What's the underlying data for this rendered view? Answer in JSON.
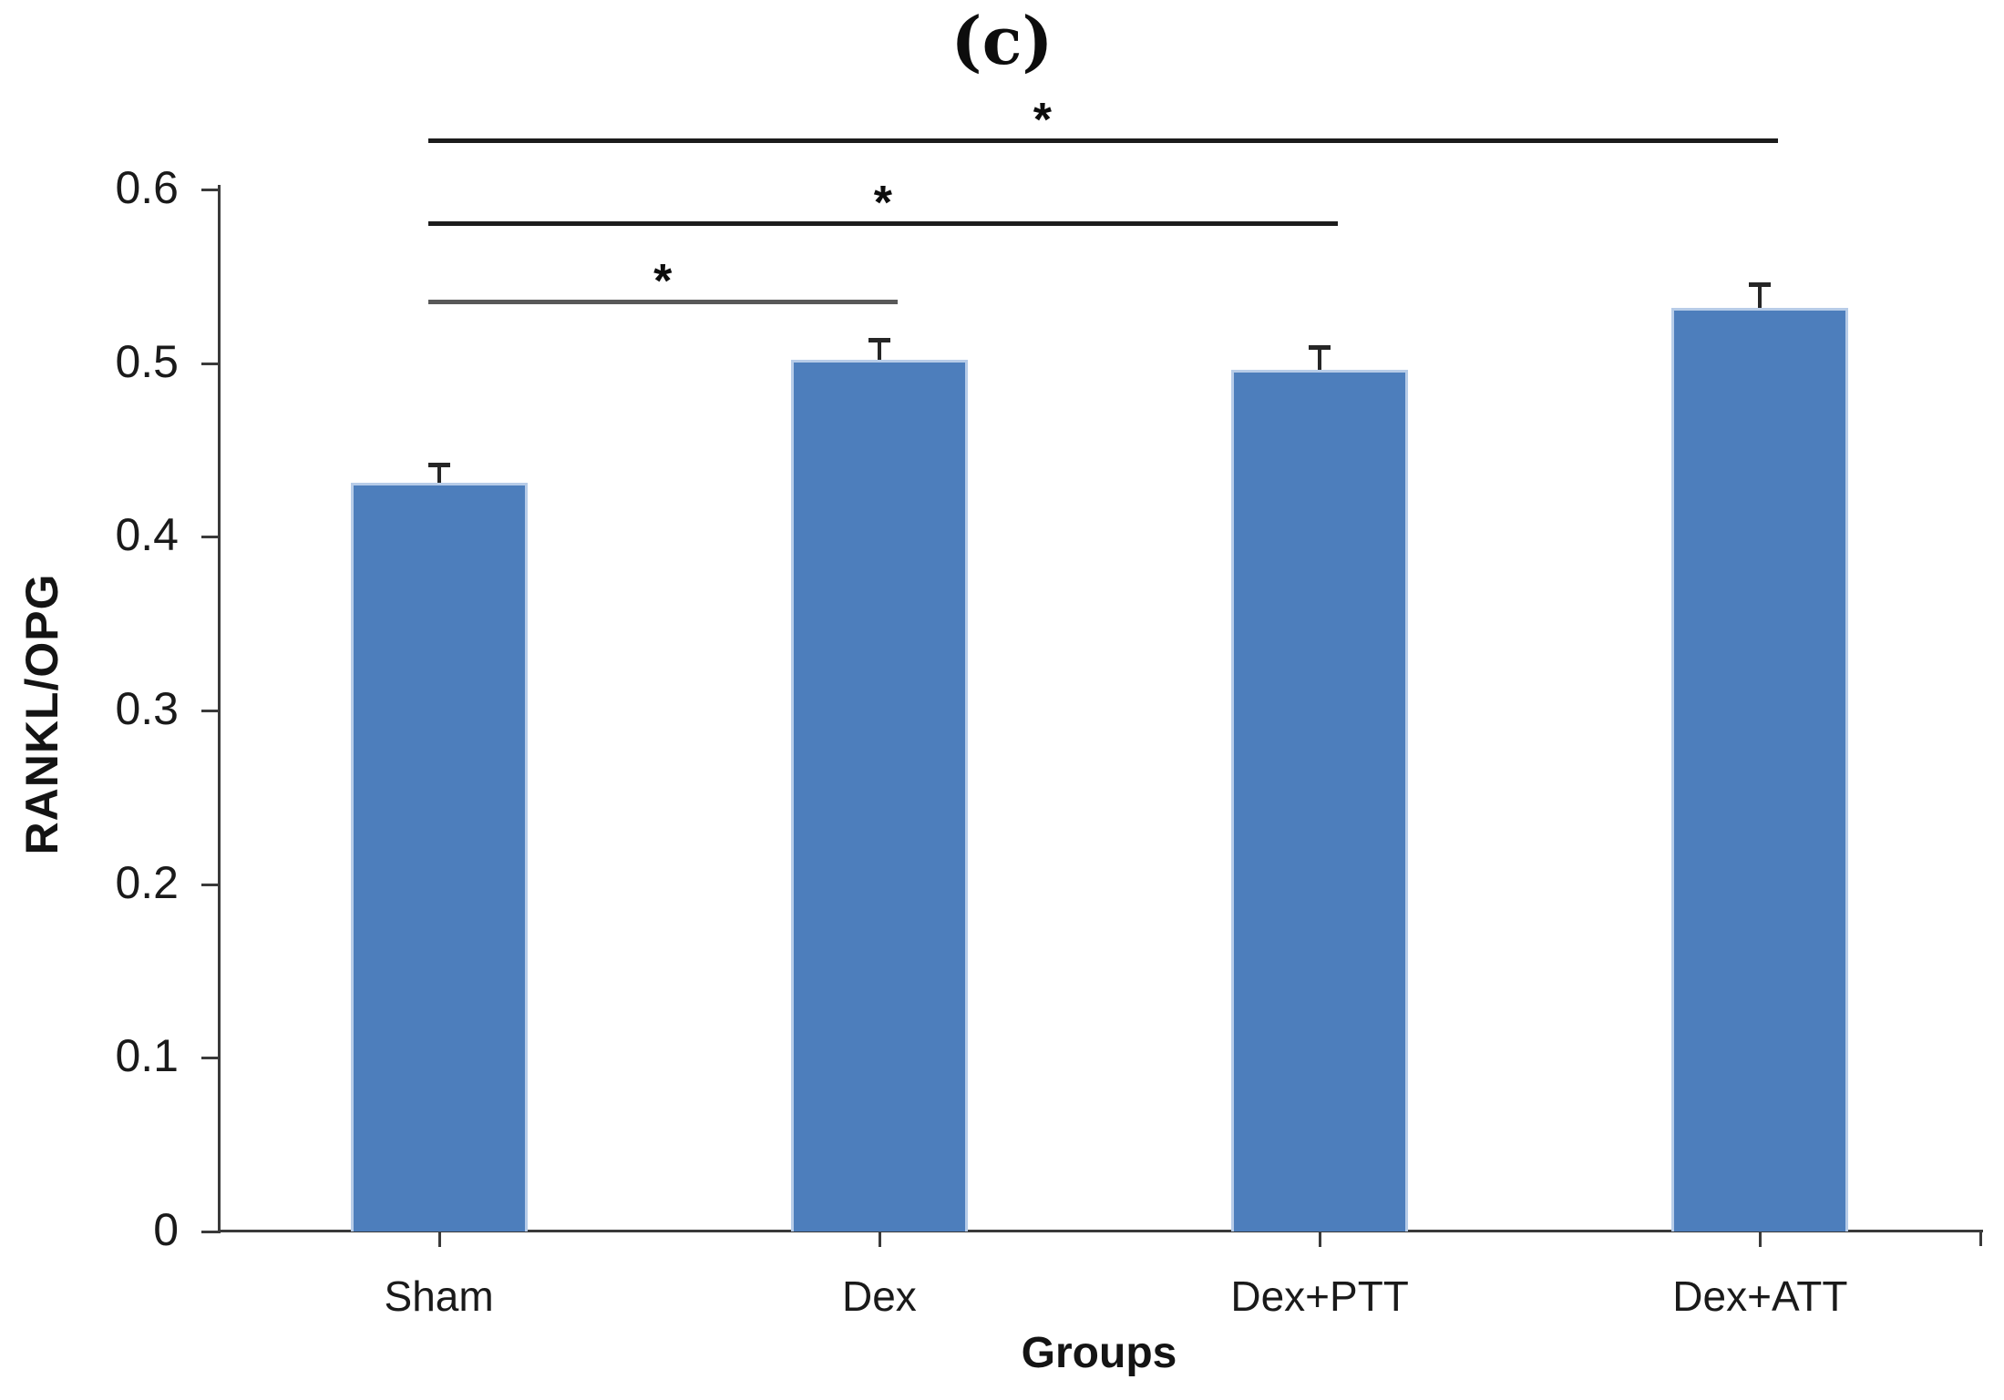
{
  "figure_label": "(c)",
  "chart_data": {
    "type": "bar",
    "title": "(c)",
    "categories": [
      "Sham",
      "Dex",
      "Dex+PTT",
      "Dex+ATT"
    ],
    "values": [
      0.431,
      0.502,
      0.496,
      0.532
    ],
    "errors": [
      0.01,
      0.011,
      0.013,
      0.013
    ],
    "xlabel": "Groups",
    "ylabel": "RANKL/OPG",
    "ylim": [
      0,
      0.6
    ],
    "ytick_step": 0.1,
    "ytick_labels": [
      "0",
      "0.1",
      "0.2",
      "0.3",
      "0.4",
      "0.5",
      "0.6"
    ],
    "grid": false,
    "legend": "none",
    "bar_color": "#4d7ebc",
    "bar_border_color": "#b7cce8",
    "error_bar_color": "#262626",
    "axis_color": "#3a3a3a",
    "significance_brackets": [
      {
        "from": "Sham",
        "from_index": 0,
        "to": "Dex",
        "to_index": 1,
        "label": "*",
        "level": 1,
        "color": "#595959"
      },
      {
        "from": "Sham",
        "from_index": 0,
        "to": "Dex+PTT",
        "to_index": 2,
        "label": "*",
        "level": 2,
        "color": "#1c1c1c"
      },
      {
        "from": "Sham",
        "from_index": 0,
        "to": "Dex+ATT",
        "to_index": 3,
        "label": "*",
        "level": 3,
        "color": "#1c1c1c"
      }
    ]
  }
}
